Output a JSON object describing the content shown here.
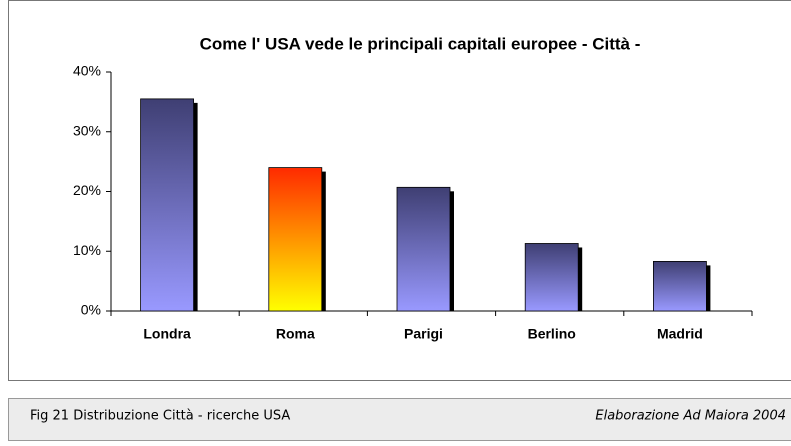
{
  "chart_data": {
    "type": "bar",
    "title": "Come l' USA vede le principali capitali europee  - Città -",
    "categories": [
      "Londra",
      "Roma",
      "Parigi",
      "Berlino",
      "Madrid"
    ],
    "values": [
      35.5,
      24,
      20.7,
      11.3,
      8.3
    ],
    "colors": [
      [
        "#3f3f73",
        "#9999ff"
      ],
      [
        "#ff2a00",
        "#ffff00"
      ],
      [
        "#3f3f73",
        "#9999ff"
      ],
      [
        "#3f3f73",
        "#9999ff"
      ],
      [
        "#3f3f73",
        "#9999ff"
      ]
    ],
    "ylim": [
      0,
      40
    ],
    "yticks": [
      {
        "value": 0,
        "label": "0%"
      },
      {
        "value": 10,
        "label": "10%"
      },
      {
        "value": 20,
        "label": "20%"
      },
      {
        "value": 30,
        "label": "30%"
      },
      {
        "value": 40,
        "label": "40%"
      }
    ],
    "grid": false
  },
  "caption": {
    "left": "Fig 21  Distribuzione Città - ricerche USA",
    "right": "Elaborazione Ad Maiora 2004"
  }
}
